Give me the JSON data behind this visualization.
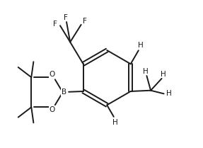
{
  "bg_color": "#ffffff",
  "line_color": "#1a1a1a",
  "lw": 1.4,
  "fs": 7.5,
  "figsize": [
    2.87,
    2.09
  ],
  "dpi": 100,
  "xlim": [
    -4.5,
    5.5
  ],
  "ylim": [
    -3.8,
    4.2
  ]
}
